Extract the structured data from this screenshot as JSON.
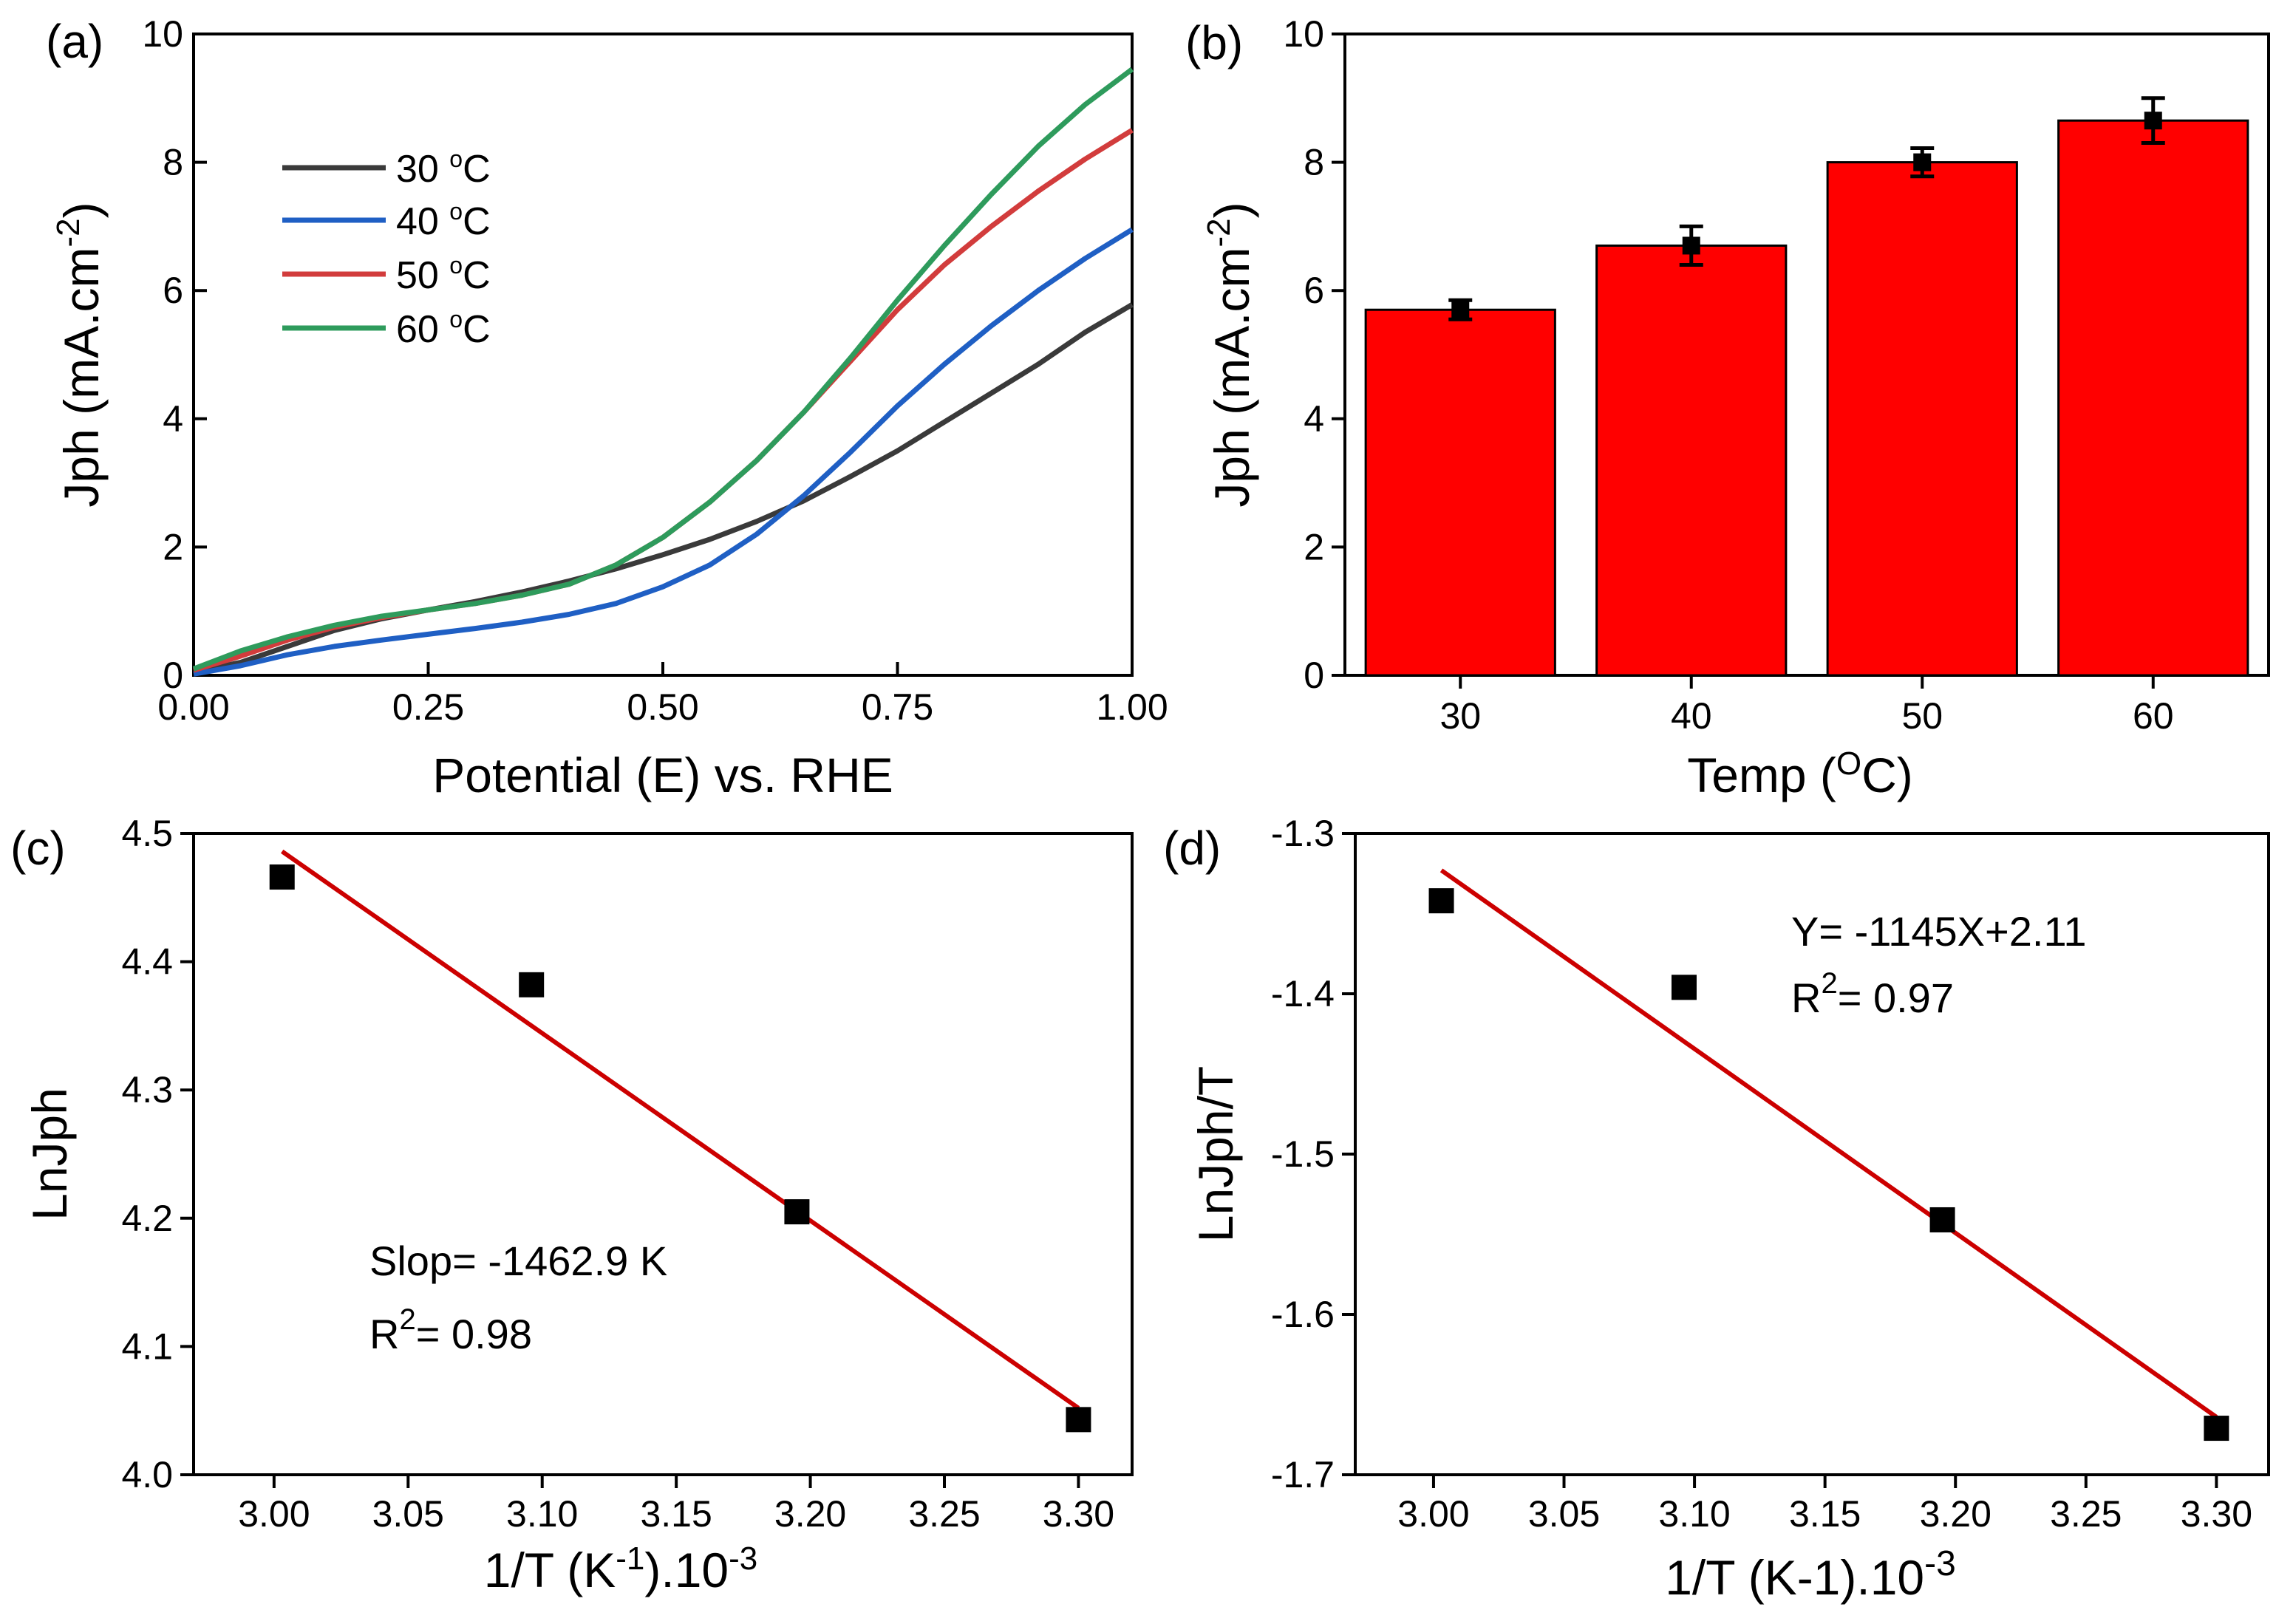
{
  "chart_data": [
    {
      "panel": "(a)",
      "type": "line",
      "xlabel": "Potential (E) vs. RHE",
      "ylabel": "Jph (mA.cm",
      "ylabel_sup": "-2",
      "ylabel_close": ")",
      "xlim": [
        0,
        1
      ],
      "ylim": [
        0,
        10
      ],
      "xticks": [
        0,
        0.25,
        0.5,
        0.75,
        1
      ],
      "xtick_labels": [
        "0.00",
        "0.25",
        "0.50",
        "0.75",
        "1.00"
      ],
      "yticks": [
        0,
        2,
        4,
        6,
        8,
        10
      ],
      "ytick_labels": [
        "0",
        "2",
        "4",
        "6",
        "8",
        "10"
      ],
      "legend_position": "top-left",
      "x": [
        0.0,
        0.05,
        0.1,
        0.15,
        0.2,
        0.25,
        0.3,
        0.35,
        0.4,
        0.45,
        0.5,
        0.55,
        0.6,
        0.65,
        0.7,
        0.75,
        0.8,
        0.85,
        0.9,
        0.95,
        1.0
      ],
      "series": [
        {
          "name": "30 °C",
          "label_main": "30 ",
          "label_sup": "o",
          "label_unit": "C",
          "color": "#3a3a3a",
          "values": [
            0.05,
            0.2,
            0.45,
            0.7,
            0.88,
            1.02,
            1.15,
            1.3,
            1.47,
            1.66,
            1.88,
            2.12,
            2.4,
            2.72,
            3.1,
            3.5,
            3.95,
            4.4,
            4.85,
            5.35,
            5.78
          ]
        },
        {
          "name": "40 °C",
          "label_main": "40 ",
          "label_sup": "o",
          "label_unit": "C",
          "color": "#1f5fc4",
          "values": [
            0.02,
            0.15,
            0.32,
            0.45,
            0.55,
            0.64,
            0.73,
            0.83,
            0.95,
            1.12,
            1.38,
            1.72,
            2.2,
            2.8,
            3.48,
            4.2,
            4.85,
            5.45,
            6.0,
            6.5,
            6.95
          ]
        },
        {
          "name": "50 °C",
          "label_main": "50 ",
          "label_sup": "o",
          "label_unit": "C",
          "color": "#d23c3c",
          "values": [
            0.08,
            0.3,
            0.55,
            0.75,
            0.9,
            1.02,
            1.12,
            1.25,
            1.42,
            1.72,
            2.15,
            2.7,
            3.35,
            4.1,
            4.9,
            5.7,
            6.4,
            7.0,
            7.55,
            8.05,
            8.5
          ]
        },
        {
          "name": "60 °C",
          "label_main": "60 ",
          "label_sup": "o",
          "label_unit": "C",
          "color": "#2e9b5c",
          "values": [
            0.1,
            0.38,
            0.6,
            0.78,
            0.92,
            1.02,
            1.12,
            1.25,
            1.42,
            1.72,
            2.15,
            2.7,
            3.35,
            4.1,
            4.95,
            5.85,
            6.7,
            7.5,
            8.25,
            8.9,
            9.45
          ]
        }
      ]
    },
    {
      "panel": "(b)",
      "type": "bar",
      "xlabel": "Temp (",
      "xlabel_sup": "O",
      "xlabel_close": "C)",
      "ylabel": "Jph (mA.cm",
      "ylabel_sup": "-2",
      "ylabel_close": ")",
      "categories": [
        "30",
        "40",
        "50",
        "60"
      ],
      "values": [
        5.7,
        6.7,
        8.0,
        8.65
      ],
      "errors": [
        0.15,
        0.3,
        0.22,
        0.35
      ],
      "bar_color": "#ff0000",
      "ylim": [
        0,
        10
      ],
      "yticks": [
        0,
        2,
        4,
        6,
        8,
        10
      ],
      "ytick_labels": [
        "0",
        "2",
        "4",
        "6",
        "8",
        "10"
      ]
    },
    {
      "panel": "(c)",
      "type": "scatter",
      "xlabel": "1/T (K",
      "xlabel_sup": "-1",
      "xlabel_mid": ").10",
      "xlabel_sup2": "-3",
      "ylabel": "LnJph",
      "xlim": [
        2.97,
        3.32
      ],
      "ylim": [
        4.0,
        4.5
      ],
      "xticks": [
        3.0,
        3.05,
        3.1,
        3.15,
        3.2,
        3.25,
        3.3
      ],
      "xtick_labels": [
        "3.00",
        "3.05",
        "3.10",
        "3.15",
        "3.20",
        "3.25",
        "3.30"
      ],
      "yticks": [
        4.0,
        4.1,
        4.2,
        4.3,
        4.4,
        4.5
      ],
      "ytick_labels": [
        "4.0",
        "4.1",
        "4.2",
        "4.3",
        "4.4",
        "4.5"
      ],
      "x": [
        3.003,
        3.096,
        3.195,
        3.3
      ],
      "y": [
        4.466,
        4.382,
        4.205,
        4.043
      ],
      "fit": {
        "x": [
          3.003,
          3.3
        ],
        "y": [
          4.486,
          4.052
        ],
        "color": "#cc0000"
      },
      "annotation_line1": "Slop= -1462.9 K",
      "annotation_r": "R",
      "annotation_r_sup": "2",
      "annotation_r_val": "= 0.98"
    },
    {
      "panel": "(d)",
      "type": "scatter",
      "xlabel": "1/T (K-1).10",
      "xlabel_sup": "-3",
      "ylabel": "LnJph/T",
      "xlim": [
        2.97,
        3.32
      ],
      "ylim": [
        -1.7,
        -1.3
      ],
      "xticks": [
        3.0,
        3.05,
        3.1,
        3.15,
        3.2,
        3.25,
        3.3
      ],
      "xtick_labels": [
        "3.00",
        "3.05",
        "3.10",
        "3.15",
        "3.20",
        "3.25",
        "3.30"
      ],
      "yticks": [
        -1.7,
        -1.6,
        -1.5,
        -1.4,
        -1.3
      ],
      "ytick_labels": [
        "-1.7",
        "-1.6",
        "-1.5",
        "-1.4",
        "-1.3"
      ],
      "x": [
        3.003,
        3.096,
        3.195,
        3.3
      ],
      "y": [
        -1.342,
        -1.396,
        -1.541,
        -1.671
      ],
      "fit": {
        "x": [
          3.003,
          3.3
        ],
        "y": [
          -1.323,
          -1.664
        ],
        "color": "#cc0000"
      },
      "annotation_line1": "Y= -1145X+2.11",
      "annotation_r": "R",
      "annotation_r_sup": "2",
      "annotation_r_val": "= 0.97"
    }
  ]
}
